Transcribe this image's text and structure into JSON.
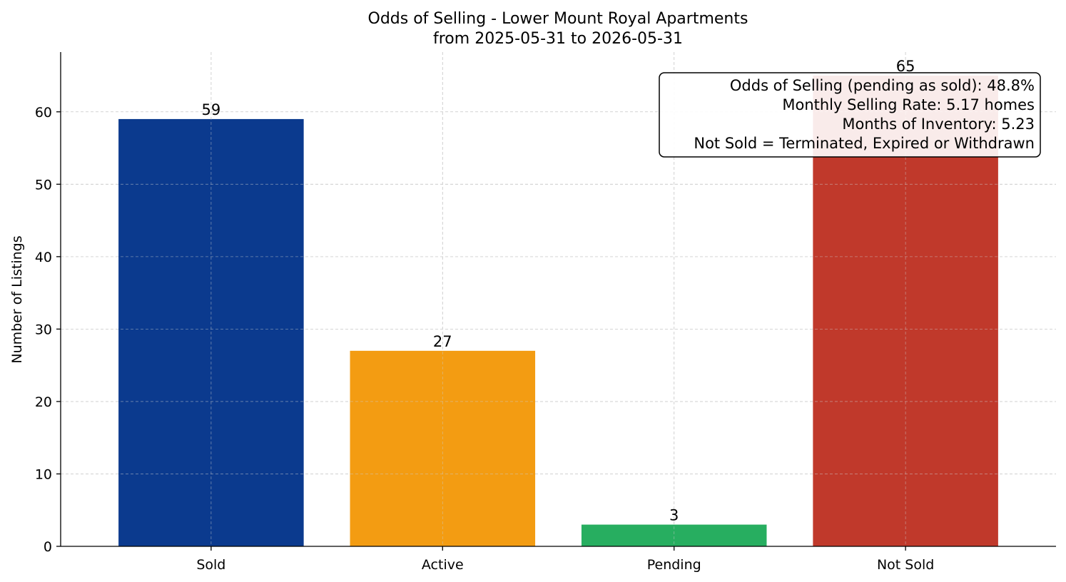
{
  "chart_data": {
    "type": "bar",
    "title": "Odds of Selling - Lower Mount Royal Apartments",
    "subtitle": "from 2025-05-31 to 2026-05-31",
    "xlabel": "",
    "ylabel": "Number of Listings",
    "categories": [
      "Sold",
      "Active",
      "Pending",
      "Not Sold"
    ],
    "values": [
      59,
      27,
      3,
      65
    ],
    "value_labels": [
      "59",
      "27",
      "3",
      "65"
    ],
    "colors": [
      "#0b3a8e",
      "#f39c12",
      "#27ae60",
      "#c0392b"
    ],
    "ylim": [
      0,
      68.25
    ],
    "yticks": [
      0,
      10,
      20,
      30,
      40,
      50,
      60
    ],
    "ytick_labels": [
      "0",
      "10",
      "20",
      "30",
      "40",
      "50",
      "60"
    ],
    "grid": true,
    "legend": "none",
    "annotation_placement": "top-right",
    "annotation_lines": [
      "Odds of Selling (pending as sold): 48.8%",
      "Monthly Selling Rate: 5.17 homes",
      "Months of Inventory: 5.23",
      "Not Sold = Terminated, Expired or Withdrawn"
    ]
  }
}
